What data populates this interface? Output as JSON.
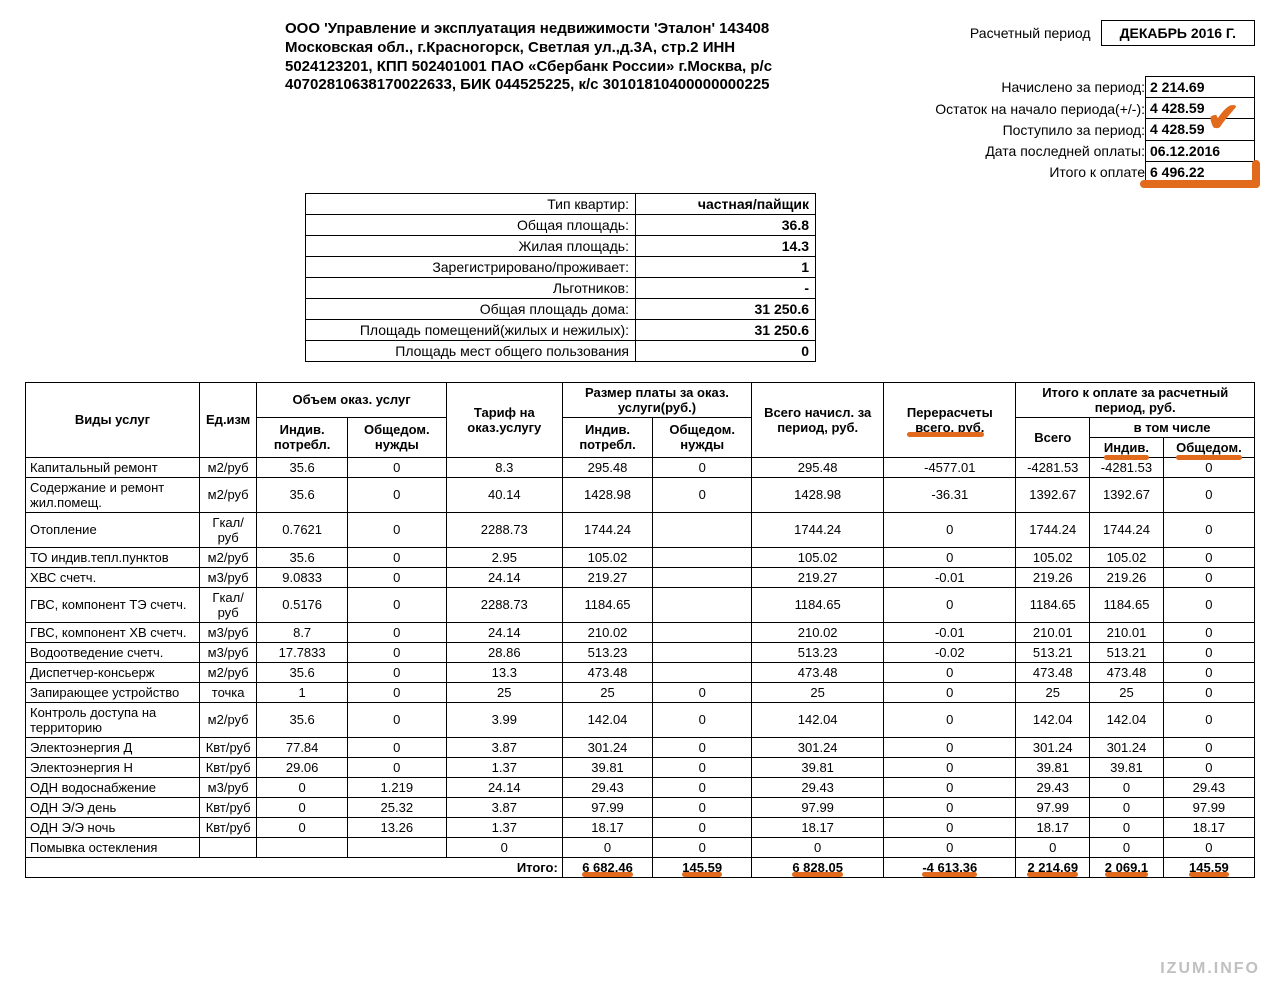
{
  "org_block": "ООО 'Управление и эксплуатация недвижимости 'Эталон' 143408 Московская обл., г.Красногорск, Светлая ул.,д.3А, стр.2 ИНН 5024123201, КПП 502401001 ПАО «Сбербанк России» г.Москва, р/с 40702810638170022633, БИК 044525225, к/с 30101810400000000225",
  "period": {
    "label": "Расчетный период",
    "value": "ДЕКАБРЬ 2016 Г."
  },
  "summary": [
    {
      "label": "Начислено за период:",
      "value": "2 214.69"
    },
    {
      "label": "Остаток на начало периода(+/-):",
      "value": "4 428.59"
    },
    {
      "label": "Поступило за период:",
      "value": "4 428.59"
    },
    {
      "label": "Дата последней оплаты:",
      "value": "06.12.2016"
    },
    {
      "label": "Итого к оплате",
      "value": "6 496.22"
    }
  ],
  "apartment": [
    {
      "label": "Тип квартир:",
      "value": "частная/пайщик"
    },
    {
      "label": "Общая площадь:",
      "value": "36.8"
    },
    {
      "label": "Жилая площадь:",
      "value": "14.3"
    },
    {
      "label": "Зарегистрировано/проживает:",
      "value": "1"
    },
    {
      "label": "Льготников:",
      "value": "-"
    },
    {
      "label": "Общая площадь дома:",
      "value": "31 250.6"
    },
    {
      "label": "Площадь помещений(жилых и нежилых):",
      "value": "31 250.6"
    },
    {
      "label": "Площадь мест общего пользования",
      "value": "0"
    }
  ],
  "headers": {
    "service": "Виды услуг",
    "unit": "Ед.изм",
    "volume": "Объем оказ. услуг",
    "indiv": "Индив. потребл.",
    "common": "Общедом. нужды",
    "tariff": "Тариф на оказ.услугу",
    "fee": "Размер платы за оказ. услуги(руб.)",
    "accrued": "Всего начисл. за период, руб.",
    "recalc": "Перерасчеты всего, руб.",
    "total": "Итого к оплате за расчетный период, руб.",
    "ttl_all": "Всего",
    "ttl_incl": "в том числе",
    "ttl_indiv": "Индив.",
    "ttl_common": "Общедом."
  },
  "rows": [
    [
      "Капитальный ремонт",
      "м2/руб",
      "35.6",
      "0",
      "8.3",
      "295.48",
      "0",
      "295.48",
      "-4577.01",
      "-4281.53",
      "-4281.53",
      "0"
    ],
    [
      "Содержание и ремонт жил.помещ.",
      "м2/руб",
      "35.6",
      "0",
      "40.14",
      "1428.98",
      "0",
      "1428.98",
      "-36.31",
      "1392.67",
      "1392.67",
      "0"
    ],
    [
      "Отопление",
      "Гкал/руб",
      "0.7621",
      "0",
      "2288.73",
      "1744.24",
      "",
      "1744.24",
      "0",
      "1744.24",
      "1744.24",
      "0"
    ],
    [
      "ТО индив.тепл.пунктов",
      "м2/руб",
      "35.6",
      "0",
      "2.95",
      "105.02",
      "",
      "105.02",
      "0",
      "105.02",
      "105.02",
      "0"
    ],
    [
      "ХВС счетч.",
      "м3/руб",
      "9.0833",
      "0",
      "24.14",
      "219.27",
      "",
      "219.27",
      "-0.01",
      "219.26",
      "219.26",
      "0"
    ],
    [
      "ГВС, компонент ТЭ счетч.",
      "Гкал/руб",
      "0.5176",
      "0",
      "2288.73",
      "1184.65",
      "",
      "1184.65",
      "0",
      "1184.65",
      "1184.65",
      "0"
    ],
    [
      "ГВС, компонент ХВ счетч.",
      "м3/руб",
      "8.7",
      "0",
      "24.14",
      "210.02",
      "",
      "210.02",
      "-0.01",
      "210.01",
      "210.01",
      "0"
    ],
    [
      "Водоотведение счетч.",
      "м3/руб",
      "17.7833",
      "0",
      "28.86",
      "513.23",
      "",
      "513.23",
      "-0.02",
      "513.21",
      "513.21",
      "0"
    ],
    [
      "Диспетчер-консьерж",
      "м2/руб",
      "35.6",
      "0",
      "13.3",
      "473.48",
      "",
      "473.48",
      "0",
      "473.48",
      "473.48",
      "0"
    ],
    [
      "Запирающее устройство",
      "точка",
      "1",
      "0",
      "25",
      "25",
      "0",
      "25",
      "0",
      "25",
      "25",
      "0"
    ],
    [
      "Контроль доступа на территорию",
      "м2/руб",
      "35.6",
      "0",
      "3.99",
      "142.04",
      "0",
      "142.04",
      "0",
      "142.04",
      "142.04",
      "0"
    ],
    [
      "Электоэнергия Д",
      "Квт/руб",
      "77.84",
      "0",
      "3.87",
      "301.24",
      "0",
      "301.24",
      "0",
      "301.24",
      "301.24",
      "0"
    ],
    [
      "Электоэнергия Н",
      "Квт/руб",
      "29.06",
      "0",
      "1.37",
      "39.81",
      "0",
      "39.81",
      "0",
      "39.81",
      "39.81",
      "0"
    ],
    [
      "ОДН водоснабжение",
      "м3/руб",
      "0",
      "1.219",
      "24.14",
      "29.43",
      "0",
      "29.43",
      "0",
      "29.43",
      "0",
      "29.43"
    ],
    [
      "ОДН Э/Э день",
      "Квт/руб",
      "0",
      "25.32",
      "3.87",
      "97.99",
      "0",
      "97.99",
      "0",
      "97.99",
      "0",
      "97.99"
    ],
    [
      "ОДН Э/Э ночь",
      "Квт/руб",
      "0",
      "13.26",
      "1.37",
      "18.17",
      "0",
      "18.17",
      "0",
      "18.17",
      "0",
      "18.17"
    ],
    [
      "Помывка остекления",
      "",
      "",
      "",
      "0",
      "0",
      "0",
      "0",
      "0",
      "0",
      "0",
      "0"
    ]
  ],
  "totals_label": "Итого:",
  "totals": [
    "6 682.46",
    "145.59",
    "6 828.05",
    "-4 613.36",
    "2 214.69",
    "2 069.1",
    "145.59"
  ],
  "watermark": "IZUM.INFO",
  "colors": {
    "highlight": "#e26a1c",
    "border": "#000000",
    "bg": "#ffffff"
  }
}
